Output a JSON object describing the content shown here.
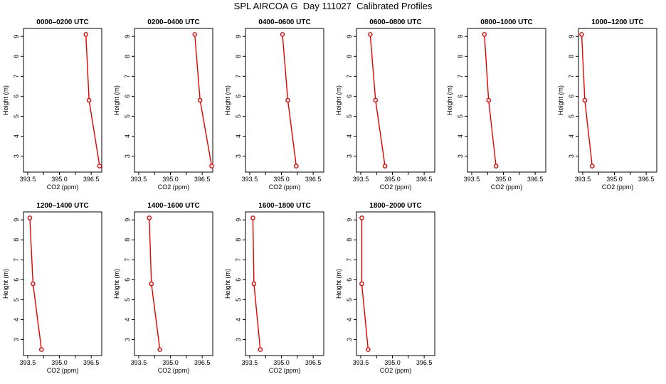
{
  "title": "SPL AIRCOA G  Day 111027  Calibrated Profiles",
  "colors": {
    "series": "#e60000",
    "axis": "#000000"
  },
  "chart_data": [
    {
      "type": "line",
      "title": "0000–0200 UTC",
      "xlabel": "CO2 (ppm)",
      "ylabel": "Height (m)",
      "xlim": [
        393.3,
        397.0
      ],
      "ylim": [
        2.2,
        9.4
      ],
      "xticks": [
        "393.5",
        "395.0",
        "396.5"
      ],
      "yticks": [
        "3",
        "4",
        "5",
        "6",
        "7",
        "8",
        "9"
      ],
      "grid": false,
      "x": [
        396.25,
        396.4,
        396.9
      ],
      "y": [
        9.1,
        5.8,
        2.5
      ]
    },
    {
      "type": "line",
      "title": "0200–0400 UTC",
      "xlabel": "CO2 (ppm)",
      "ylabel": "Height (m)",
      "xlim": [
        393.3,
        397.0
      ],
      "ylim": [
        2.2,
        9.4
      ],
      "xticks": [
        "393.5",
        "395.0",
        "396.5"
      ],
      "yticks": [
        "3",
        "4",
        "5",
        "6",
        "7",
        "8",
        "9"
      ],
      "grid": false,
      "x": [
        396.15,
        396.4,
        396.95
      ],
      "y": [
        9.1,
        5.8,
        2.5
      ]
    },
    {
      "type": "line",
      "title": "0400–0600 UTC",
      "xlabel": "CO2 (ppm)",
      "ylabel": "Height (m)",
      "xlim": [
        393.3,
        397.0
      ],
      "ylim": [
        2.2,
        9.4
      ],
      "xticks": [
        "393.5",
        "395.0",
        "396.5"
      ],
      "yticks": [
        "3",
        "4",
        "5",
        "6",
        "7",
        "8",
        "9"
      ],
      "grid": false,
      "x": [
        395.05,
        395.3,
        395.7
      ],
      "y": [
        9.1,
        5.8,
        2.5
      ]
    },
    {
      "type": "line",
      "title": "0600–0800 UTC",
      "xlabel": "CO2 (ppm)",
      "ylabel": "Height (m)",
      "xlim": [
        393.3,
        397.0
      ],
      "ylim": [
        2.2,
        9.4
      ],
      "xticks": [
        "393.5",
        "395.0",
        "396.5"
      ],
      "yticks": [
        "3",
        "4",
        "5",
        "6",
        "7",
        "8",
        "9"
      ],
      "grid": false,
      "x": [
        393.95,
        394.2,
        394.65
      ],
      "y": [
        9.1,
        5.8,
        2.5
      ]
    },
    {
      "type": "line",
      "title": "0800–1000 UTC",
      "xlabel": "CO2 (ppm)",
      "ylabel": "Height (m)",
      "xlim": [
        393.3,
        397.0
      ],
      "ylim": [
        2.2,
        9.4
      ],
      "xticks": [
        "393.5",
        "395.0",
        "396.5"
      ],
      "yticks": [
        "3",
        "4",
        "5",
        "6",
        "7",
        "8",
        "9"
      ],
      "grid": false,
      "x": [
        394.1,
        394.3,
        394.65
      ],
      "y": [
        9.1,
        5.8,
        2.5
      ]
    },
    {
      "type": "line",
      "title": "1000–1200 UTC",
      "xlabel": "CO2 (ppm)",
      "ylabel": "Height (m)",
      "xlim": [
        393.3,
        397.0
      ],
      "ylim": [
        2.2,
        9.4
      ],
      "xticks": [
        "393.5",
        "395.0",
        "396.5"
      ],
      "yticks": [
        "3",
        "4",
        "5",
        "6",
        "7",
        "8",
        "9"
      ],
      "grid": false,
      "x": [
        393.45,
        393.6,
        393.95
      ],
      "y": [
        9.1,
        5.8,
        2.5
      ]
    },
    {
      "type": "line",
      "title": "1200–1400 UTC",
      "xlabel": "CO2 (ppm)",
      "ylabel": "Height (m)",
      "xlim": [
        393.3,
        397.0
      ],
      "ylim": [
        2.2,
        9.4
      ],
      "xticks": [
        "393.5",
        "395.0",
        "396.5"
      ],
      "yticks": [
        "3",
        "4",
        "5",
        "6",
        "7",
        "8",
        "9"
      ],
      "grid": false,
      "x": [
        393.6,
        393.75,
        394.15
      ],
      "y": [
        9.1,
        5.8,
        2.5
      ]
    },
    {
      "type": "line",
      "title": "1400–1600 UTC",
      "xlabel": "CO2 (ppm)",
      "ylabel": "Height (m)",
      "xlim": [
        393.3,
        397.0
      ],
      "ylim": [
        2.2,
        9.4
      ],
      "xticks": [
        "393.5",
        "395.0",
        "396.5"
      ],
      "yticks": [
        "3",
        "4",
        "5",
        "6",
        "7",
        "8",
        "9"
      ],
      "grid": false,
      "x": [
        394.0,
        394.1,
        394.5
      ],
      "y": [
        9.1,
        5.8,
        2.5
      ]
    },
    {
      "type": "line",
      "title": "1600–1800 UTC",
      "xlabel": "CO2 (ppm)",
      "ylabel": "Height (m)",
      "xlim": [
        393.3,
        397.0
      ],
      "ylim": [
        2.2,
        9.4
      ],
      "xticks": [
        "393.5",
        "395.0",
        "396.5"
      ],
      "yticks": [
        "3",
        "4",
        "5",
        "6",
        "7",
        "8",
        "9"
      ],
      "grid": false,
      "x": [
        393.65,
        393.7,
        394.0
      ],
      "y": [
        9.1,
        5.8,
        2.5
      ]
    },
    {
      "type": "line",
      "title": "1800–2000 UTC",
      "xlabel": "CO2 (ppm)",
      "ylabel": "Height (m)",
      "xlim": [
        393.3,
        397.0
      ],
      "ylim": [
        2.2,
        9.4
      ],
      "xticks": [
        "393.5",
        "395.0",
        "396.5"
      ],
      "yticks": [
        "3",
        "4",
        "5",
        "6",
        "7",
        "8",
        "9"
      ],
      "grid": false,
      "x": [
        393.55,
        393.55,
        393.85
      ],
      "y": [
        9.1,
        5.8,
        2.5
      ]
    }
  ]
}
